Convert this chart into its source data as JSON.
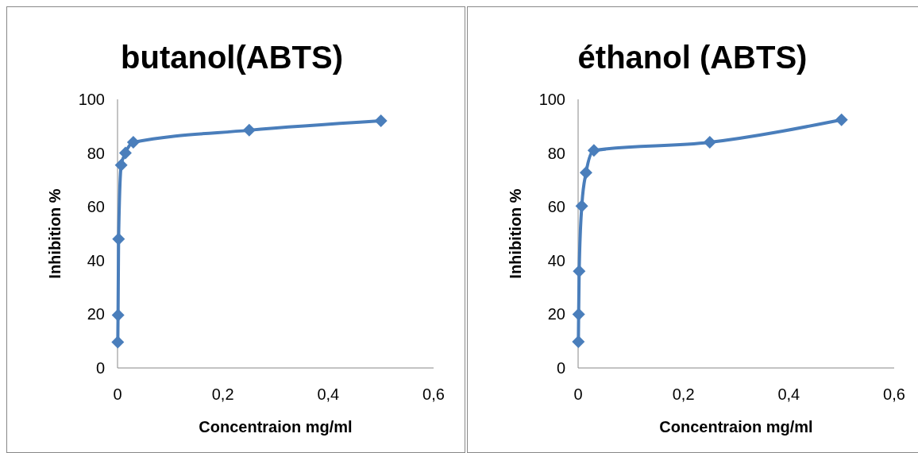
{
  "chart_data": [
    {
      "type": "line",
      "title": "butanol(ABTS)",
      "xlabel": "Concentraion mg/ml",
      "ylabel": "Inhibition %",
      "x": [
        0.0005,
        0.001,
        0.002,
        0.007,
        0.015,
        0.03,
        0.25,
        0.5
      ],
      "series": [
        {
          "color": "#4a7ebb",
          "values": [
            9.6,
            19.7,
            48,
            75.5,
            80,
            84,
            88.5,
            92
          ]
        }
      ],
      "xlim": [
        0,
        0.6
      ],
      "xticks": [
        0,
        {
          "value": 0.2,
          "label": "0,2"
        },
        {
          "value": 0.4,
          "label": "0,4"
        },
        {
          "value": 0.6,
          "label": "0,6"
        }
      ],
      "ylim": [
        0,
        100
      ],
      "yticks": [
        0,
        20,
        40,
        60,
        80,
        100
      ],
      "grid": false,
      "marker": "diamond",
      "line_style": "solid"
    },
    {
      "type": "line",
      "title": "éthanol (ABTS)",
      "xlabel": "Concentraion mg/ml",
      "ylabel": "Inhibition %",
      "x": [
        0.0005,
        0.001,
        0.002,
        0.007,
        0.015,
        0.03,
        0.25,
        0.5
      ],
      "series": [
        {
          "color": "#4a7ebb",
          "values": [
            9.8,
            20,
            36,
            60.3,
            72.7,
            81,
            84,
            92.4
          ]
        }
      ],
      "xlim": [
        0,
        0.6
      ],
      "xticks": [
        0,
        {
          "value": 0.2,
          "label": "0,2"
        },
        {
          "value": 0.4,
          "label": "0,4"
        },
        {
          "value": 0.6,
          "label": "0,6"
        }
      ],
      "ylim": [
        0,
        100
      ],
      "yticks": [
        0,
        20,
        40,
        60,
        80,
        100
      ],
      "grid": false,
      "marker": "diamond",
      "line_style": "solid"
    }
  ]
}
